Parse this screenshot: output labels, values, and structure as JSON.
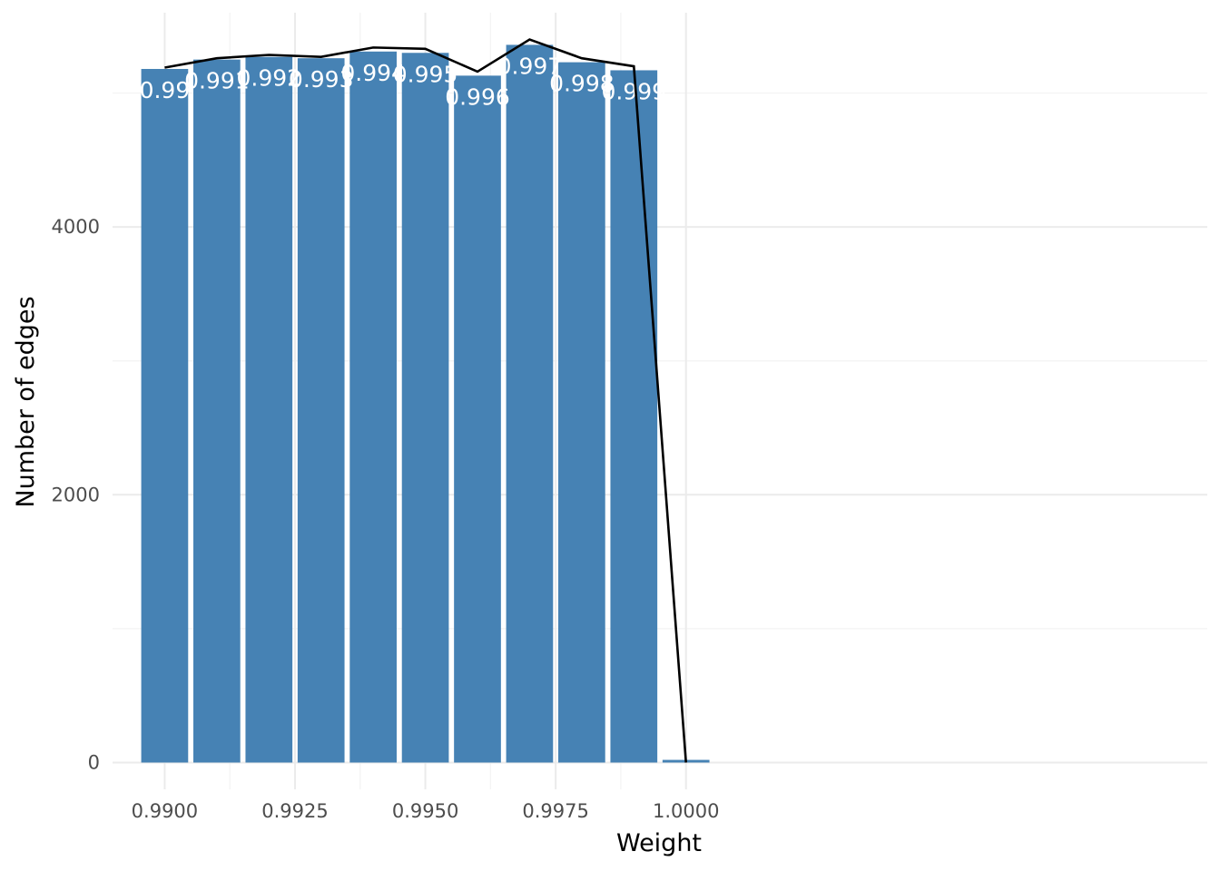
{
  "chart_data": {
    "type": "bar",
    "xlabel": "Weight",
    "ylabel": "Number of edges",
    "x": [
      0.99,
      0.991,
      0.992,
      0.993,
      0.994,
      0.995,
      0.996,
      0.997,
      0.998,
      0.999,
      1.0
    ],
    "values": [
      5180,
      5250,
      5270,
      5260,
      5310,
      5300,
      5130,
      5360,
      5230,
      5170,
      20
    ],
    "bar_labels": [
      "0.99",
      "0.991",
      "0.992",
      "0.993",
      "0.994",
      "0.995",
      "0.996",
      "0.997",
      "0.998",
      "0.999",
      ""
    ],
    "line": {
      "x": [
        0.99,
        0.991,
        0.992,
        0.993,
        0.994,
        0.995,
        0.996,
        0.997,
        0.998,
        0.999,
        1.0
      ],
      "y": [
        5190,
        5260,
        5285,
        5270,
        5340,
        5330,
        5160,
        5400,
        5260,
        5200,
        0
      ]
    },
    "xlim": [
      0.989,
      1.01
    ],
    "ylim": [
      -200,
      5600
    ],
    "x_ticks": [
      0.99,
      0.9925,
      0.995,
      0.9975,
      1.0
    ],
    "x_tick_labels": [
      "0.9900",
      "0.9925",
      "0.9950",
      "0.9975",
      "1.0000"
    ],
    "y_ticks": [
      0,
      2000,
      4000
    ],
    "y_tick_labels": [
      "0",
      "2000",
      "4000"
    ],
    "grid": true,
    "bar_color": "#4682b4",
    "line_color": "#000000",
    "label_color": "#ffffff"
  }
}
